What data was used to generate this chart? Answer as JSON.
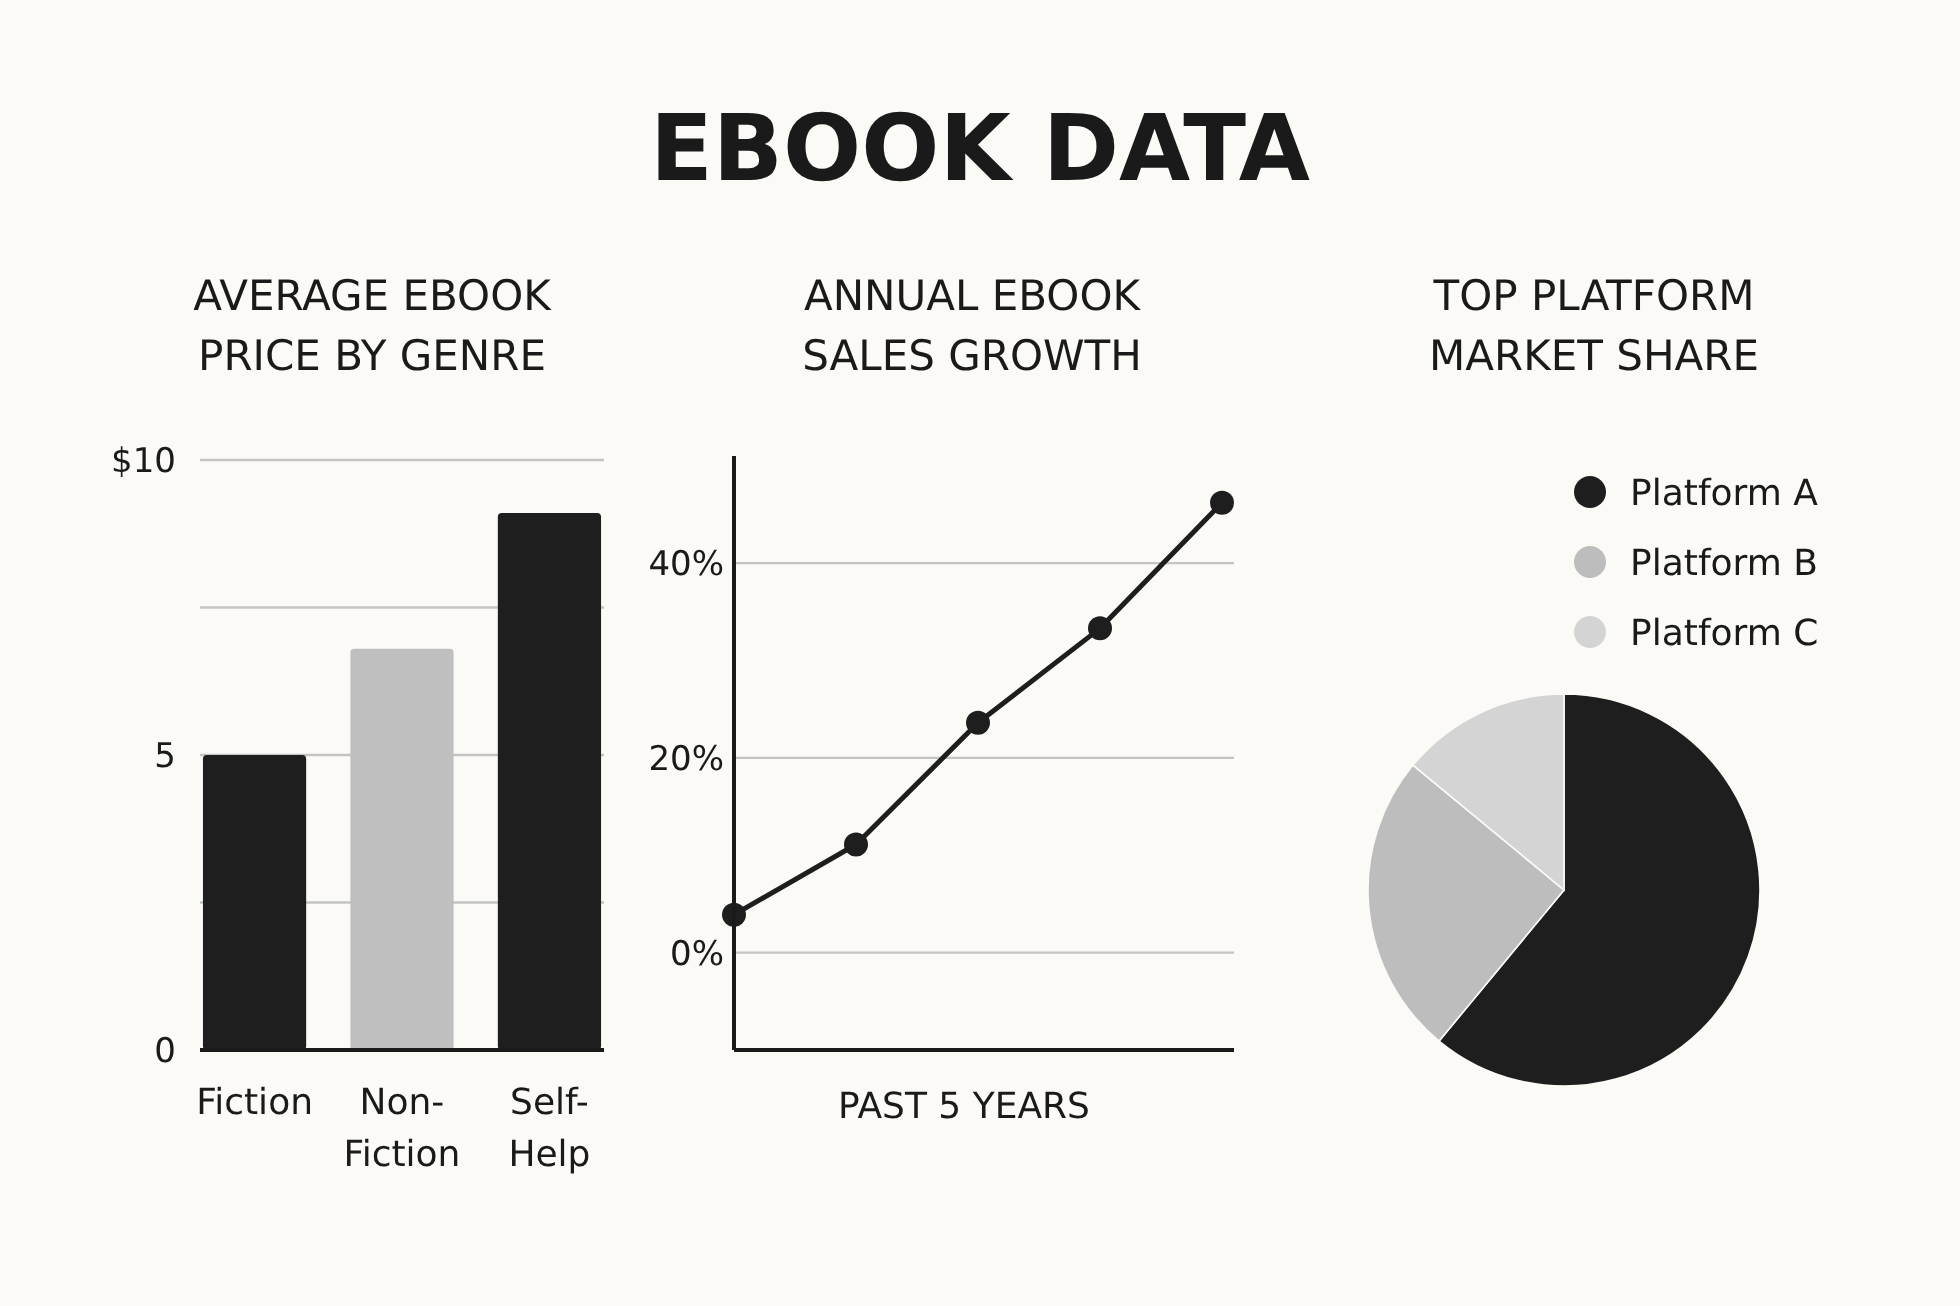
{
  "chart_data": [
    {
      "type": "other",
      "title": "EBOOK DATA"
    },
    {
      "type": "bar",
      "title": "AVERAGE EBOOK PRICE BY GENRE",
      "categories": [
        "Fiction",
        "Non-Fiction",
        "Self-Help"
      ],
      "values": [
        5.0,
        6.8,
        9.1
      ],
      "colors": [
        "#1e1e1e",
        "#bfbfbf",
        "#1e1e1e"
      ],
      "ylim": [
        0,
        10
      ],
      "yticks": [
        0,
        {
          "value": 2.5,
          "label": null
        },
        5,
        {
          "value": 7.5,
          "label": null
        },
        {
          "value": 10,
          "label": "$10"
        }
      ],
      "grid": "y"
    },
    {
      "type": "line",
      "title": "ANNUAL EBOOK SALES GROWTH",
      "xlabel": "PAST 5 YEARS",
      "categories": [
        null,
        null,
        null,
        null,
        null
      ],
      "values": [
        3.9,
        11.1,
        23.6,
        33.3,
        46.2
      ],
      "color": "#1e1e1e",
      "ylim": [
        -10,
        51
      ],
      "yticks": [
        {
          "value": 0,
          "label": "0%"
        },
        {
          "value": 20,
          "label": "20%"
        },
        {
          "value": 40,
          "label": "40%"
        }
      ],
      "grid": "y",
      "marker": "circle"
    },
    {
      "type": "pie",
      "title": "TOP PLATFORM MARKET SHARE",
      "categories": [
        "Platform A",
        "Platform B",
        "Platform C"
      ],
      "values": [
        61,
        25,
        14
      ],
      "colors": [
        "#1e1e1e",
        "#bdbdbd",
        "#d4d4d4"
      ],
      "legend": "top"
    }
  ]
}
